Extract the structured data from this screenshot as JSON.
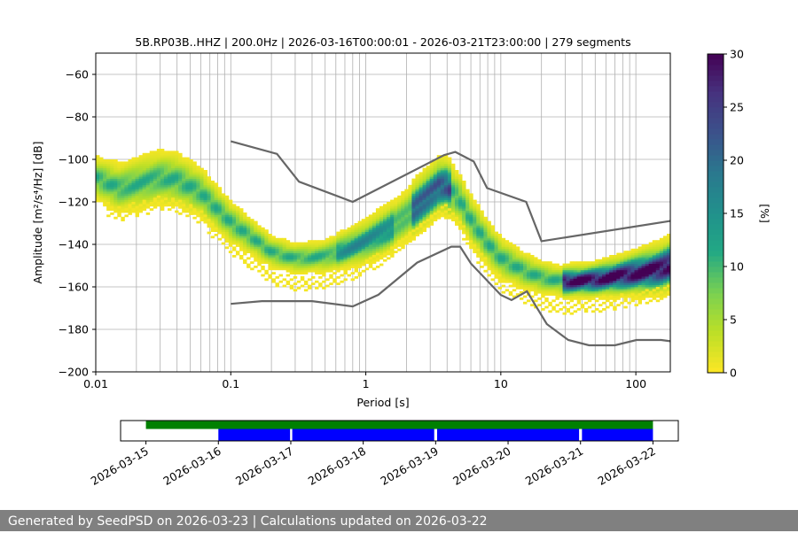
{
  "chart_data": {
    "type": "heatmap",
    "title": "5B.RP03B..HHZ | 200.0Hz | 2026-03-16T00:00:01 - 2026-03-21T23:00:00 | 279 segments",
    "xlabel": "Period [s]",
    "ylabel": "Amplitude [m²/s⁴/Hz] [dB]",
    "xscale": "log",
    "xlim": [
      0.01,
      180
    ],
    "ylim": [
      -200,
      -50
    ],
    "xticks": [
      0.01,
      0.1,
      1,
      10,
      100
    ],
    "xtick_labels": [
      "0.01",
      "0.1",
      "1",
      "10",
      "100"
    ],
    "yticks": [
      -200,
      -180,
      -160,
      -140,
      -120,
      -100,
      -80,
      -60
    ],
    "ytick_labels": [
      "−200",
      "−180",
      "−160",
      "−140",
      "−120",
      "−100",
      "−80",
      "−60"
    ],
    "grid": true,
    "colorbar": {
      "label": "[%]",
      "range": [
        0,
        30
      ],
      "ticks": [
        0,
        5,
        10,
        15,
        20,
        25,
        30
      ],
      "tick_labels": [
        "0",
        "5",
        "10",
        "15",
        "20",
        "25",
        "30"
      ],
      "colormap": "viridis_r"
    },
    "ppsd_mode_curve": {
      "period": [
        0.01,
        0.015,
        0.02,
        0.03,
        0.04,
        0.06,
        0.08,
        0.1,
        0.15,
        0.2,
        0.3,
        0.5,
        0.7,
        1.0,
        1.5,
        2,
        3,
        3.5,
        4,
        5,
        6,
        8,
        10,
        15,
        20,
        30,
        50,
        100,
        150,
        180
      ],
      "db": [
        -109,
        -114,
        -112,
        -109,
        -110,
        -116,
        -124,
        -130,
        -138,
        -144,
        -147,
        -146,
        -143,
        -139,
        -133,
        -127,
        -117,
        -113,
        -113,
        -120,
        -129,
        -140,
        -147,
        -153,
        -156,
        -158,
        -157,
        -154,
        -152,
        -150
      ]
    },
    "nlnm_curve": {
      "period": [
        0.1,
        0.17,
        0.4,
        0.8,
        1.24,
        2.4,
        4.3,
        5.0,
        6.0,
        10.0,
        12.0,
        15.6,
        21.9,
        31.6,
        45.0,
        70.0,
        101.0,
        154.0,
        180
      ],
      "db": [
        -168.0,
        -166.7,
        -166.7,
        -169.2,
        -163.7,
        -148.6,
        -141.1,
        -141.1,
        -149.0,
        -163.8,
        -166.2,
        -162.1,
        -177.5,
        -185.0,
        -187.5,
        -187.5,
        -185.0,
        -185.0,
        -185.6
      ]
    },
    "nhnm_curve": {
      "period": [
        0.1,
        0.22,
        0.32,
        0.8,
        3.8,
        4.6,
        6.3,
        7.9,
        15.4,
        20.0,
        180
      ],
      "db": [
        -91.5,
        -97.4,
        -110.5,
        -120.0,
        -98.0,
        -96.5,
        -101.0,
        -113.5,
        -120.0,
        -138.5,
        -129.0
      ]
    },
    "data_availability": {
      "date_ticks": [
        "2026-03-15",
        "2026-03-16",
        "2026-03-17",
        "2026-03-18",
        "2026-03-19",
        "2026-03-20",
        "2026-03-21",
        "2026-03-22"
      ],
      "xlim_days": [
        -0.35,
        7.35
      ],
      "green_range_days": [
        0,
        7
      ],
      "blue_segments_days": [
        [
          1.0,
          1.99
        ],
        [
          2.02,
          3.98
        ],
        [
          4.02,
          5.98
        ],
        [
          6.02,
          7.0
        ]
      ],
      "colors": {
        "green": "#008000",
        "blue": "#0000ff"
      }
    }
  },
  "footer": {
    "text": "Generated by SeedPSD on 2026-03-23 | Calculations updated on 2026-03-22"
  }
}
